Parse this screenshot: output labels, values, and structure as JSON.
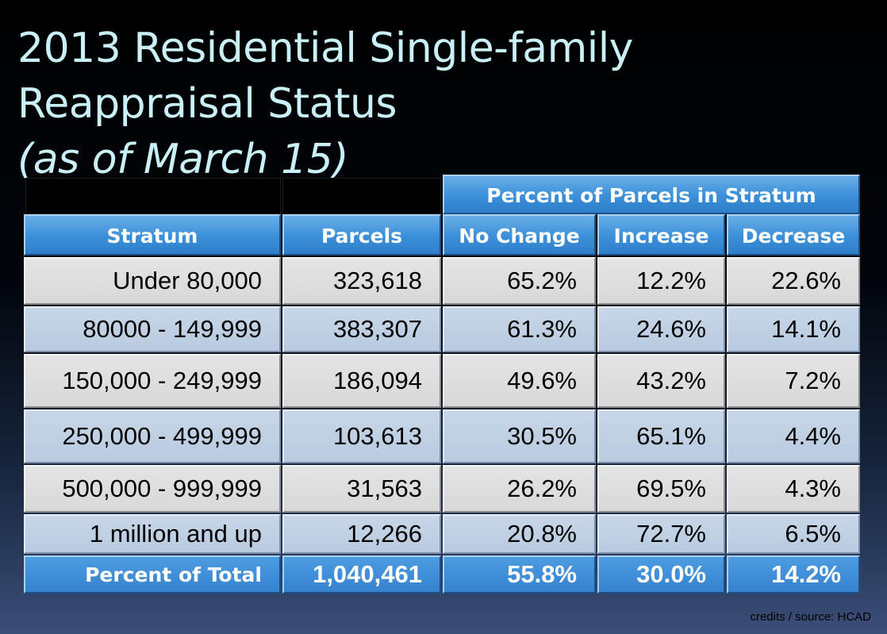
{
  "title_line1": "2013 Residential Single-family",
  "title_line2": "Reappraisal Status",
  "title_sub": "(as of March 15)",
  "table": {
    "group_header": "Percent of Parcels in Stratum",
    "columns": [
      "Stratum",
      "Parcels",
      "No Change",
      "Increase",
      "Decrease"
    ],
    "rows": [
      [
        "Under 80,000",
        "323,618",
        "65.2%",
        "12.2%",
        "22.6%"
      ],
      [
        "80000 - 149,999",
        "383,307",
        "61.3%",
        "24.6%",
        "14.1%"
      ],
      [
        "150,000 - 249,999",
        "186,094",
        "49.6%",
        "43.2%",
        "7.2%"
      ],
      [
        "250,000 - 499,999",
        "103,613",
        "30.5%",
        "65.1%",
        "4.4%"
      ],
      [
        "500,000 - 999,999",
        "31,563",
        "26.2%",
        "69.5%",
        "4.3%"
      ],
      [
        "1 million and up",
        "12,266",
        "20.8%",
        "72.7%",
        "6.5%"
      ]
    ],
    "total": [
      "Percent of Total",
      "1,040,461",
      "55.8%",
      "30.0%",
      "14.2%"
    ]
  },
  "credits": "credits / source: HCAD",
  "colors": {
    "title_text": "#c8f0f6",
    "header_blue": "#3b8fd8",
    "row_gray": "#dcdcdc",
    "row_blue": "#bfd0e4"
  }
}
